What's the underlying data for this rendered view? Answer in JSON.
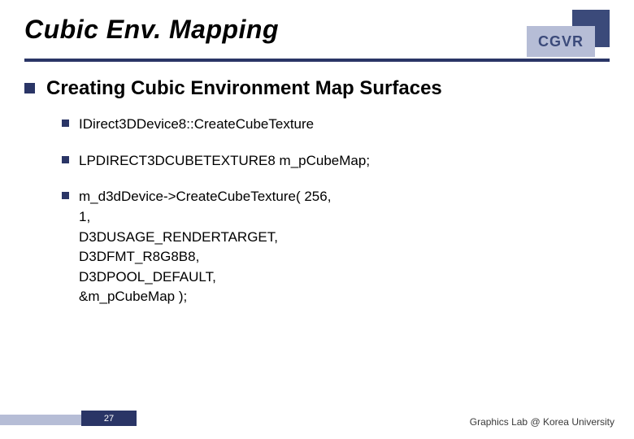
{
  "slide": {
    "title": "Cubic Env. Mapping",
    "badge": "CGVR",
    "title_underline_color": "#2a3566",
    "badge_colors": {
      "back": "#3b4a7a",
      "front_bg": "#b6bdd6",
      "front_text": "#3b4a7a"
    }
  },
  "content": {
    "heading": "Creating Cubic Environment Map Surfaces",
    "bullets": [
      "IDirect3DDevice8::CreateCubeTexture",
      "LPDIRECT3DCUBETEXTURE8 m_pCubeMap;",
      "m_d3dDevice->CreateCubeTexture( 256,\n          1,\n          D3DUSAGE_RENDERTARGET,\n          D3DFMT_R8G8B8,\n          D3DPOOL_DEFAULT,\n          &m_pCubeMap );"
    ],
    "bullet_color": "#2a3566",
    "heading_fontsize": 24,
    "bullet_fontsize": 17
  },
  "footer": {
    "page_number": "27",
    "attribution": "Graphics Lab @ Korea University",
    "stripe_color": "#b6bdd6",
    "badge_bg": "#2a3566"
  }
}
